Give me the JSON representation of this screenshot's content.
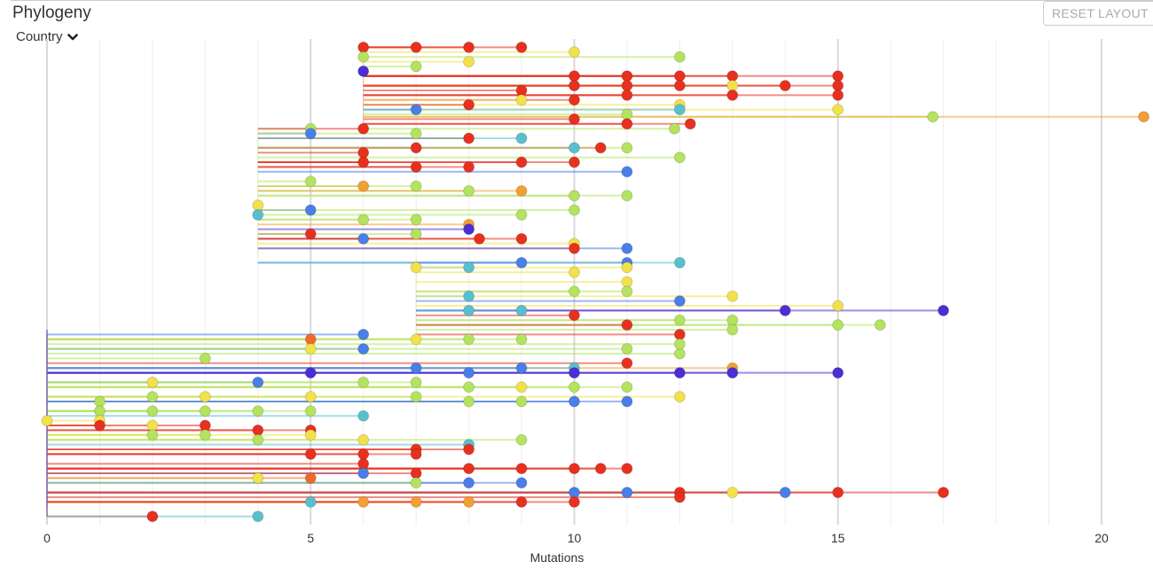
{
  "panel": {
    "title": "Phylogeny",
    "color_by_label": "Country",
    "reset_label": "RESET LAYOUT"
  },
  "colors": {
    "country_a": "#e8301f",
    "country_b": "#b3e35f",
    "country_c": "#f2e14a",
    "country_d": "#4a7ee8",
    "country_e": "#57c0cf",
    "country_f": "#f2a033",
    "country_g": "#4b2fd4",
    "country_h": "#f06a2a",
    "root": "#7b5ea8"
  },
  "chart_data": {
    "type": "phylogeny-rectangular",
    "title": "Phylogeny",
    "xlabel": "Mutations",
    "xlim": [
      0,
      21
    ],
    "xticks": [
      "0",
      "5",
      "10",
      "15",
      "20"
    ],
    "xtick_values": [
      0,
      5,
      10,
      15,
      20
    ],
    "grid": true,
    "clades": [
      {
        "name": "clade-top-red",
        "parent_x": 6,
        "y_range": [
          0.0,
          0.18
        ],
        "color": "country_a",
        "tips": [
          [
            6,
            0.01,
            "country_a"
          ],
          [
            7,
            0.01,
            "country_a"
          ],
          [
            8,
            0.01,
            "country_a"
          ],
          [
            9,
            0.01,
            "country_a"
          ],
          [
            6,
            0.03,
            "country_b"
          ],
          [
            10,
            0.02,
            "country_c"
          ],
          [
            12,
            0.03,
            "country_b"
          ],
          [
            7,
            0.05,
            "country_b"
          ],
          [
            8,
            0.04,
            "country_c"
          ],
          [
            6,
            0.06,
            "country_g"
          ],
          [
            10,
            0.07,
            "country_a"
          ],
          [
            11,
            0.07,
            "country_a"
          ],
          [
            12,
            0.07,
            "country_a"
          ],
          [
            13,
            0.07,
            "country_a"
          ],
          [
            15,
            0.07,
            "country_a"
          ],
          [
            10,
            0.09,
            "country_a"
          ],
          [
            11,
            0.09,
            "country_a"
          ],
          [
            12,
            0.09,
            "country_a"
          ],
          [
            13,
            0.09,
            "country_c"
          ],
          [
            14,
            0.09,
            "country_a"
          ],
          [
            15,
            0.09,
            "country_a"
          ],
          [
            9,
            0.1,
            "country_a"
          ],
          [
            11,
            0.11,
            "country_a"
          ],
          [
            13,
            0.11,
            "country_a"
          ],
          [
            15,
            0.11,
            "country_a"
          ],
          [
            10,
            0.12,
            "country_a"
          ],
          [
            12,
            0.13,
            "country_c"
          ],
          [
            15,
            0.14,
            "country_c"
          ],
          [
            7,
            0.14,
            "country_d"
          ],
          [
            8,
            0.13,
            "country_a"
          ],
          [
            9,
            0.12,
            "country_c"
          ],
          [
            12,
            0.14,
            "country_e"
          ],
          [
            11,
            0.15,
            "country_b"
          ],
          [
            10,
            0.16,
            "country_a"
          ],
          [
            11,
            0.17,
            "country_a"
          ],
          [
            12.2,
            0.17,
            "country_a"
          ],
          [
            11.9,
            0.18,
            "country_b"
          ]
        ]
      },
      {
        "name": "clade-long-orange",
        "parent_x": 6,
        "y_range": [
          0.15,
          0.16
        ],
        "color": "country_b",
        "tips": [
          [
            16.8,
            0.155,
            "country_b"
          ],
          [
            20.8,
            0.155,
            "country_f"
          ]
        ]
      },
      {
        "name": "clade-mid-upper",
        "parent_x": 4,
        "y_range": [
          0.18,
          0.45
        ],
        "color": "country_b",
        "tips": [
          [
            5,
            0.18,
            "country_b"
          ],
          [
            5,
            0.19,
            "country_d"
          ],
          [
            6,
            0.18,
            "country_a"
          ],
          [
            7,
            0.19,
            "country_b"
          ],
          [
            8,
            0.2,
            "country_a"
          ],
          [
            6,
            0.23,
            "country_a"
          ],
          [
            7,
            0.22,
            "country_a"
          ],
          [
            9,
            0.2,
            "country_e"
          ],
          [
            10,
            0.22,
            "country_e"
          ],
          [
            10.5,
            0.22,
            "country_a"
          ],
          [
            11,
            0.22,
            "country_b"
          ],
          [
            12,
            0.24,
            "country_b"
          ],
          [
            6,
            0.25,
            "country_a"
          ],
          [
            7,
            0.26,
            "country_a"
          ],
          [
            8,
            0.26,
            "country_a"
          ],
          [
            9,
            0.25,
            "country_a"
          ],
          [
            10,
            0.25,
            "country_a"
          ],
          [
            11,
            0.27,
            "country_d"
          ],
          [
            5,
            0.29,
            "country_b"
          ],
          [
            6,
            0.3,
            "country_f"
          ],
          [
            7,
            0.3,
            "country_b"
          ],
          [
            8,
            0.31,
            "country_b"
          ],
          [
            9,
            0.31,
            "country_f"
          ],
          [
            10,
            0.32,
            "country_b"
          ],
          [
            11,
            0.32,
            "country_b"
          ],
          [
            4,
            0.34,
            "country_c"
          ],
          [
            4,
            0.36,
            "country_e"
          ],
          [
            5,
            0.35,
            "country_d"
          ],
          [
            6,
            0.37,
            "country_b"
          ],
          [
            7,
            0.37,
            "country_b"
          ],
          [
            8,
            0.38,
            "country_f"
          ],
          [
            9,
            0.36,
            "country_b"
          ],
          [
            10,
            0.35,
            "country_b"
          ],
          [
            5,
            0.4,
            "country_a"
          ],
          [
            6,
            0.41,
            "country_d"
          ],
          [
            7,
            0.4,
            "country_b"
          ],
          [
            8,
            0.39,
            "country_g"
          ],
          [
            8.2,
            0.41,
            "country_a"
          ],
          [
            10,
            0.42,
            "country_c"
          ],
          [
            9,
            0.41,
            "country_a"
          ],
          [
            10,
            0.43,
            "country_a"
          ],
          [
            11,
            0.43,
            "country_d"
          ],
          [
            11,
            0.46,
            "country_d"
          ],
          [
            12,
            0.46,
            "country_e"
          ]
        ]
      },
      {
        "name": "clade-mid-lower",
        "parent_x": 7,
        "y_range": [
          0.45,
          0.64
        ],
        "color": "country_b",
        "tips": [
          [
            7,
            0.47,
            "country_c"
          ],
          [
            8,
            0.47,
            "country_e"
          ],
          [
            9,
            0.46,
            "country_d"
          ],
          [
            10,
            0.48,
            "country_c"
          ],
          [
            11,
            0.47,
            "country_c"
          ],
          [
            11,
            0.5,
            "country_c"
          ],
          [
            10,
            0.52,
            "country_b"
          ],
          [
            8,
            0.53,
            "country_e"
          ],
          [
            11,
            0.52,
            "country_b"
          ],
          [
            12,
            0.54,
            "country_d"
          ],
          [
            13,
            0.53,
            "country_c"
          ],
          [
            15,
            0.55,
            "country_c"
          ],
          [
            14,
            0.56,
            "country_g"
          ],
          [
            17,
            0.56,
            "country_g"
          ],
          [
            8,
            0.56,
            "country_e"
          ],
          [
            9,
            0.56,
            "country_e"
          ],
          [
            10,
            0.57,
            "country_a"
          ],
          [
            12,
            0.58,
            "country_b"
          ],
          [
            13,
            0.58,
            "country_b"
          ],
          [
            15,
            0.59,
            "country_b"
          ],
          [
            15.8,
            0.59,
            "country_b"
          ],
          [
            11,
            0.59,
            "country_a"
          ],
          [
            12,
            0.61,
            "country_a"
          ],
          [
            13,
            0.6,
            "country_b"
          ]
        ]
      },
      {
        "name": "clade-purple-base",
        "parent_x": 0,
        "y_range": [
          0.61,
          0.97
        ],
        "color": "country_g",
        "tips": [
          [
            3,
            0.66,
            "country_b"
          ],
          [
            5,
            0.62,
            "country_h"
          ],
          [
            6,
            0.61,
            "country_d"
          ],
          [
            7,
            0.62,
            "country_c"
          ],
          [
            8,
            0.62,
            "country_b"
          ],
          [
            5,
            0.64,
            "country_c"
          ],
          [
            6,
            0.64,
            "country_d"
          ],
          [
            9,
            0.62,
            "country_b"
          ],
          [
            11,
            0.64,
            "country_b"
          ],
          [
            12,
            0.65,
            "country_b"
          ],
          [
            12,
            0.63,
            "country_b"
          ],
          [
            13,
            0.68,
            "country_f"
          ],
          [
            11,
            0.67,
            "country_a"
          ],
          [
            10,
            0.68,
            "country_e"
          ],
          [
            5,
            0.69,
            "country_g"
          ],
          [
            7,
            0.68,
            "country_d"
          ],
          [
            8,
            0.69,
            "country_d"
          ],
          [
            9,
            0.68,
            "country_d"
          ],
          [
            10,
            0.69,
            "country_g"
          ],
          [
            12,
            0.69,
            "country_g"
          ],
          [
            13,
            0.69,
            "country_g"
          ],
          [
            15,
            0.69,
            "country_g"
          ],
          [
            2,
            0.71,
            "country_c"
          ],
          [
            4,
            0.71,
            "country_d"
          ],
          [
            6,
            0.71,
            "country_b"
          ],
          [
            7,
            0.71,
            "country_b"
          ],
          [
            8,
            0.72,
            "country_b"
          ],
          [
            9,
            0.72,
            "country_c"
          ],
          [
            10,
            0.72,
            "country_b"
          ],
          [
            11,
            0.72,
            "country_b"
          ],
          [
            12,
            0.74,
            "country_c"
          ],
          [
            1,
            0.75,
            "country_b"
          ],
          [
            2,
            0.74,
            "country_b"
          ],
          [
            3,
            0.74,
            "country_c"
          ],
          [
            5,
            0.74,
            "country_c"
          ],
          [
            7,
            0.74,
            "country_b"
          ],
          [
            8,
            0.75,
            "country_b"
          ],
          [
            9,
            0.75,
            "country_b"
          ],
          [
            10,
            0.75,
            "country_d"
          ],
          [
            11,
            0.75,
            "country_d"
          ],
          [
            1,
            0.77,
            "country_b"
          ],
          [
            2,
            0.77,
            "country_b"
          ],
          [
            3,
            0.77,
            "country_b"
          ],
          [
            4,
            0.77,
            "country_b"
          ],
          [
            5,
            0.77,
            "country_b"
          ],
          [
            6,
            0.78,
            "country_e"
          ],
          [
            0,
            0.79,
            "country_c"
          ],
          [
            1,
            0.79,
            "country_c"
          ],
          [
            2,
            0.8,
            "country_c"
          ],
          [
            3,
            0.8,
            "country_a"
          ],
          [
            4,
            0.81,
            "country_a"
          ],
          [
            5,
            0.81,
            "country_a"
          ],
          [
            1,
            0.8,
            "country_a"
          ],
          [
            2,
            0.82,
            "country_b"
          ],
          [
            3,
            0.82,
            "country_b"
          ],
          [
            4,
            0.83,
            "country_b"
          ],
          [
            5,
            0.82,
            "country_c"
          ],
          [
            6,
            0.83,
            "country_c"
          ],
          [
            8,
            0.84,
            "country_e"
          ],
          [
            9,
            0.83,
            "country_b"
          ],
          [
            7,
            0.85,
            "country_a"
          ],
          [
            8,
            0.85,
            "country_a"
          ],
          [
            5,
            0.86,
            "country_a"
          ],
          [
            6,
            0.86,
            "country_a"
          ],
          [
            7,
            0.86,
            "country_a"
          ],
          [
            6,
            0.88,
            "country_a"
          ],
          [
            8,
            0.89,
            "country_a"
          ],
          [
            9,
            0.89,
            "country_a"
          ],
          [
            10,
            0.89,
            "country_a"
          ],
          [
            11,
            0.89,
            "country_a"
          ],
          [
            10.5,
            0.89,
            "country_a"
          ],
          [
            4,
            0.91,
            "country_c"
          ],
          [
            5,
            0.91,
            "country_h"
          ],
          [
            6,
            0.9,
            "country_d"
          ],
          [
            7,
            0.9,
            "country_a"
          ],
          [
            8,
            0.92,
            "country_d"
          ],
          [
            9,
            0.92,
            "country_d"
          ],
          [
            7,
            0.92,
            "country_b"
          ],
          [
            10,
            0.94,
            "country_d"
          ],
          [
            11,
            0.94,
            "country_d"
          ],
          [
            12,
            0.94,
            "country_a"
          ],
          [
            13,
            0.94,
            "country_c"
          ],
          [
            14,
            0.94,
            "country_d"
          ],
          [
            15,
            0.94,
            "country_a"
          ],
          [
            17,
            0.94,
            "country_a"
          ],
          [
            12,
            0.95,
            "country_a"
          ],
          [
            5,
            0.96,
            "country_e"
          ],
          [
            6,
            0.96,
            "country_f"
          ],
          [
            7,
            0.96,
            "country_f"
          ],
          [
            8,
            0.96,
            "country_f"
          ],
          [
            9,
            0.96,
            "country_a"
          ],
          [
            10,
            0.96,
            "country_a"
          ],
          [
            2,
            0.99,
            "country_a"
          ],
          [
            4,
            0.99,
            "country_e"
          ]
        ]
      }
    ]
  }
}
